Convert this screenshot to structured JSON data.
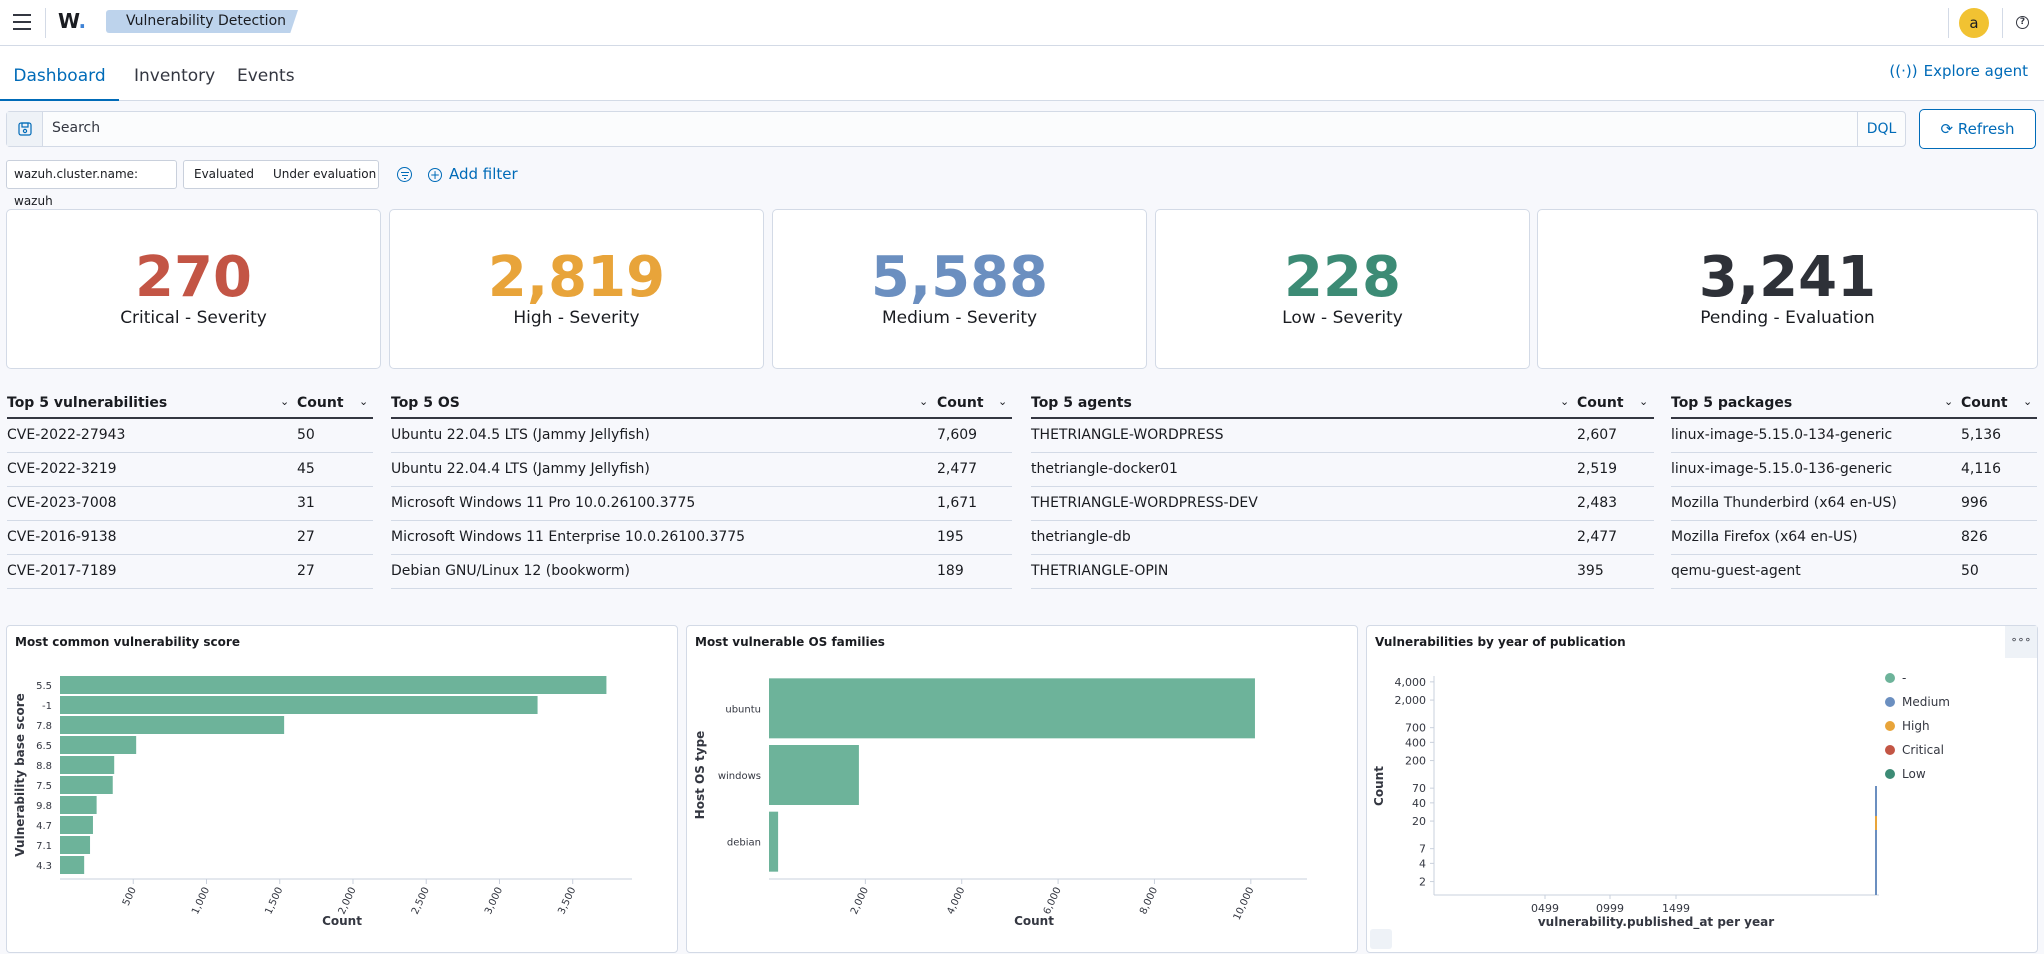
{
  "header": {
    "breadcrumb": "Vulnerability Detection",
    "avatar_letter": "a",
    "help": "?"
  },
  "tabs": [
    {
      "label": "Dashboard"
    },
    {
      "label": "Inventory"
    },
    {
      "label": "Events"
    }
  ],
  "explore_agent": "Explore agent",
  "search": {
    "placeholder": "Search",
    "dql": "DQL",
    "refresh": "Refresh"
  },
  "filters": {
    "cluster": "wazuh.cluster.name: wazuh",
    "evaluated": "Evaluated",
    "under_evaluation": "Under evaluation",
    "add_filter": "Add filter"
  },
  "stats": [
    {
      "value": "270",
      "label": "Critical - Severity",
      "color": "#c35545"
    },
    {
      "value": "2,819",
      "label": "High - Severity",
      "color": "#e8a43a"
    },
    {
      "value": "5,588",
      "label": "Medium - Severity",
      "color": "#6b8fc0"
    },
    {
      "value": "228",
      "label": "Low - Severity",
      "color": "#3c8b75"
    },
    {
      "value": "3,241",
      "label": "Pending - Evaluation",
      "color": "#2e3138"
    }
  ],
  "tables": {
    "vulns": {
      "title": "Top 5 vulnerabilities",
      "count": "Count",
      "rows": [
        [
          "CVE-2022-27943",
          "50"
        ],
        [
          "CVE-2022-3219",
          "45"
        ],
        [
          "CVE-2023-7008",
          "31"
        ],
        [
          "CVE-2016-9138",
          "27"
        ],
        [
          "CVE-2017-7189",
          "27"
        ]
      ]
    },
    "os": {
      "title": "Top 5 OS",
      "count": "Count",
      "rows": [
        [
          "Ubuntu 22.04.5 LTS (Jammy Jellyfish)",
          "7,609"
        ],
        [
          "Ubuntu 22.04.4 LTS (Jammy Jellyfish)",
          "2,477"
        ],
        [
          "Microsoft Windows 11 Pro 10.0.26100.3775",
          "1,671"
        ],
        [
          "Microsoft Windows 11 Enterprise 10.0.26100.3775",
          "195"
        ],
        [
          "Debian GNU/Linux 12 (bookworm)",
          "189"
        ]
      ]
    },
    "agents": {
      "title": "Top 5 agents",
      "count": "Count",
      "rows": [
        [
          "THETRIANGLE-WORDPRESS",
          "2,607"
        ],
        [
          "thetriangle-docker01",
          "2,519"
        ],
        [
          "THETRIANGLE-WORDPRESS-DEV",
          "2,483"
        ],
        [
          "thetriangle-db",
          "2,477"
        ],
        [
          "THETRIANGLE-OPIN",
          "395"
        ]
      ]
    },
    "packages": {
      "title": "Top 5 packages",
      "count": "Count",
      "rows": [
        [
          "linux-image-5.15.0-134-generic",
          "5,136"
        ],
        [
          "linux-image-5.15.0-136-generic",
          "4,116"
        ],
        [
          "Mozilla Thunderbird (x64 en-US)",
          "996"
        ],
        [
          "Mozilla Firefox (x64 en-US)",
          "826"
        ],
        [
          "qemu-guest-agent",
          "50"
        ]
      ]
    }
  },
  "chart_data": [
    {
      "type": "bar",
      "orientation": "horizontal",
      "title": "Most common vulnerability score",
      "xlabel": "Count",
      "ylabel": "Vulnerability base score",
      "categories": [
        "5.5",
        "-1",
        "7.8",
        "6.5",
        "8.8",
        "7.5",
        "9.8",
        "4.7",
        "7.1",
        "4.3"
      ],
      "values": [
        3730,
        3260,
        1530,
        520,
        370,
        360,
        250,
        225,
        205,
        165
      ],
      "xlim": [
        0,
        3850
      ],
      "xticks": [
        "500",
        "1,000",
        "1,500",
        "2,000",
        "2,500",
        "3,000",
        "3,500"
      ],
      "color": "#6db39a"
    },
    {
      "type": "bar",
      "orientation": "horizontal",
      "title": "Most vulnerable OS families",
      "xlabel": "Count",
      "ylabel": "Host OS type",
      "categories": [
        "ubuntu",
        "windows",
        "debian"
      ],
      "values": [
        10086,
        1866,
        189
      ],
      "xlim": [
        0,
        11000
      ],
      "xticks": [
        "2,000",
        "4,000",
        "6,000",
        "8,000",
        "10,000"
      ],
      "color": "#6db39a"
    },
    {
      "type": "area",
      "title": "Vulnerabilities by year of publication",
      "xlabel": "vulnerability.published_at per year",
      "ylabel": "Count",
      "yscale": "log",
      "yticks": [
        "4,000",
        "2,000",
        "700",
        "400",
        "200",
        "70",
        "40",
        "20",
        "7",
        "4",
        "2"
      ],
      "xticks": [
        "0499",
        "0999",
        "1499"
      ],
      "series": [
        {
          "name": "-",
          "color": "#6db39a"
        },
        {
          "name": "Medium",
          "color": "#6b8fc0"
        },
        {
          "name": "High",
          "color": "#e8a43a"
        },
        {
          "name": "Critical",
          "color": "#c35545"
        },
        {
          "name": "Low",
          "color": "#3c8b75"
        }
      ]
    }
  ]
}
